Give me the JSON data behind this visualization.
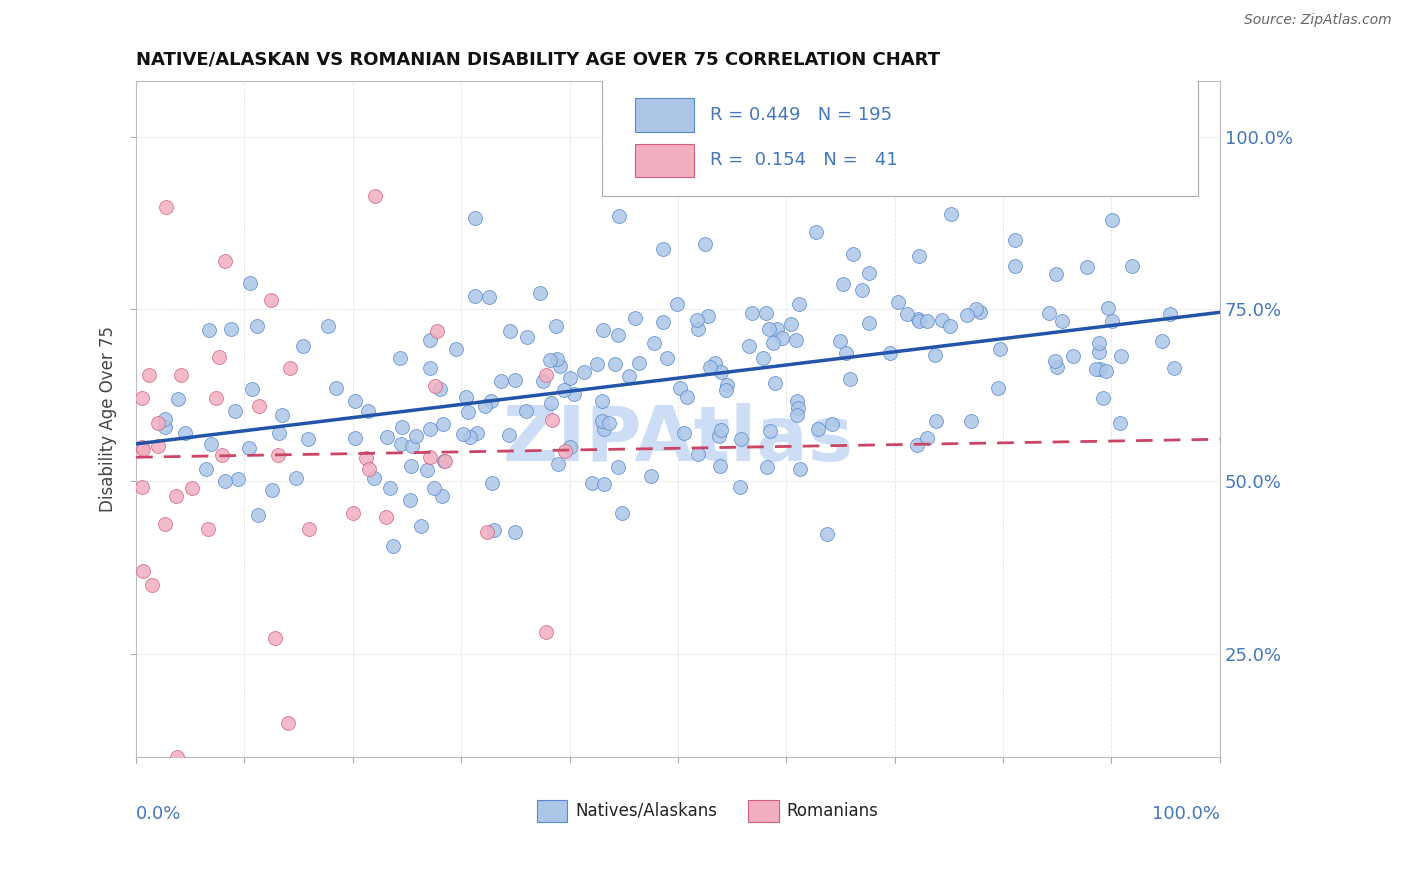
{
  "title": "NATIVE/ALASKAN VS ROMANIAN DISABILITY AGE OVER 75 CORRELATION CHART",
  "source": "Source: ZipAtlas.com",
  "ylabel": "Disability Age Over 75",
  "ytick_labels": [
    "25.0%",
    "50.0%",
    "75.0%",
    "100.0%"
  ],
  "ytick_vals": [
    0.25,
    0.5,
    0.75,
    1.0
  ],
  "color_blue": "#adc6e8",
  "color_pink": "#f2afc0",
  "edge_blue": "#5588cc",
  "edge_pink": "#d06080",
  "trendline_blue": "#2255aa",
  "trendline_pink": "#cc4466",
  "watermark_color": "#ccddf5",
  "title_color": "#111111",
  "source_color": "#666666",
  "axis_label_color": "#4477bb",
  "ylabel_color": "#444444",
  "legend_text_color": "#4477bb",
  "legend_label_color": "#222222",
  "grid_color": "#dddddd",
  "xlim": [
    0.0,
    1.0
  ],
  "ylim": [
    0.1,
    1.08
  ],
  "figsize": [
    14.06,
    8.92
  ],
  "dpi": 100,
  "blue_intercept": 0.5,
  "blue_slope": 0.26,
  "pink_intercept": 0.56,
  "pink_slope": 0.18
}
